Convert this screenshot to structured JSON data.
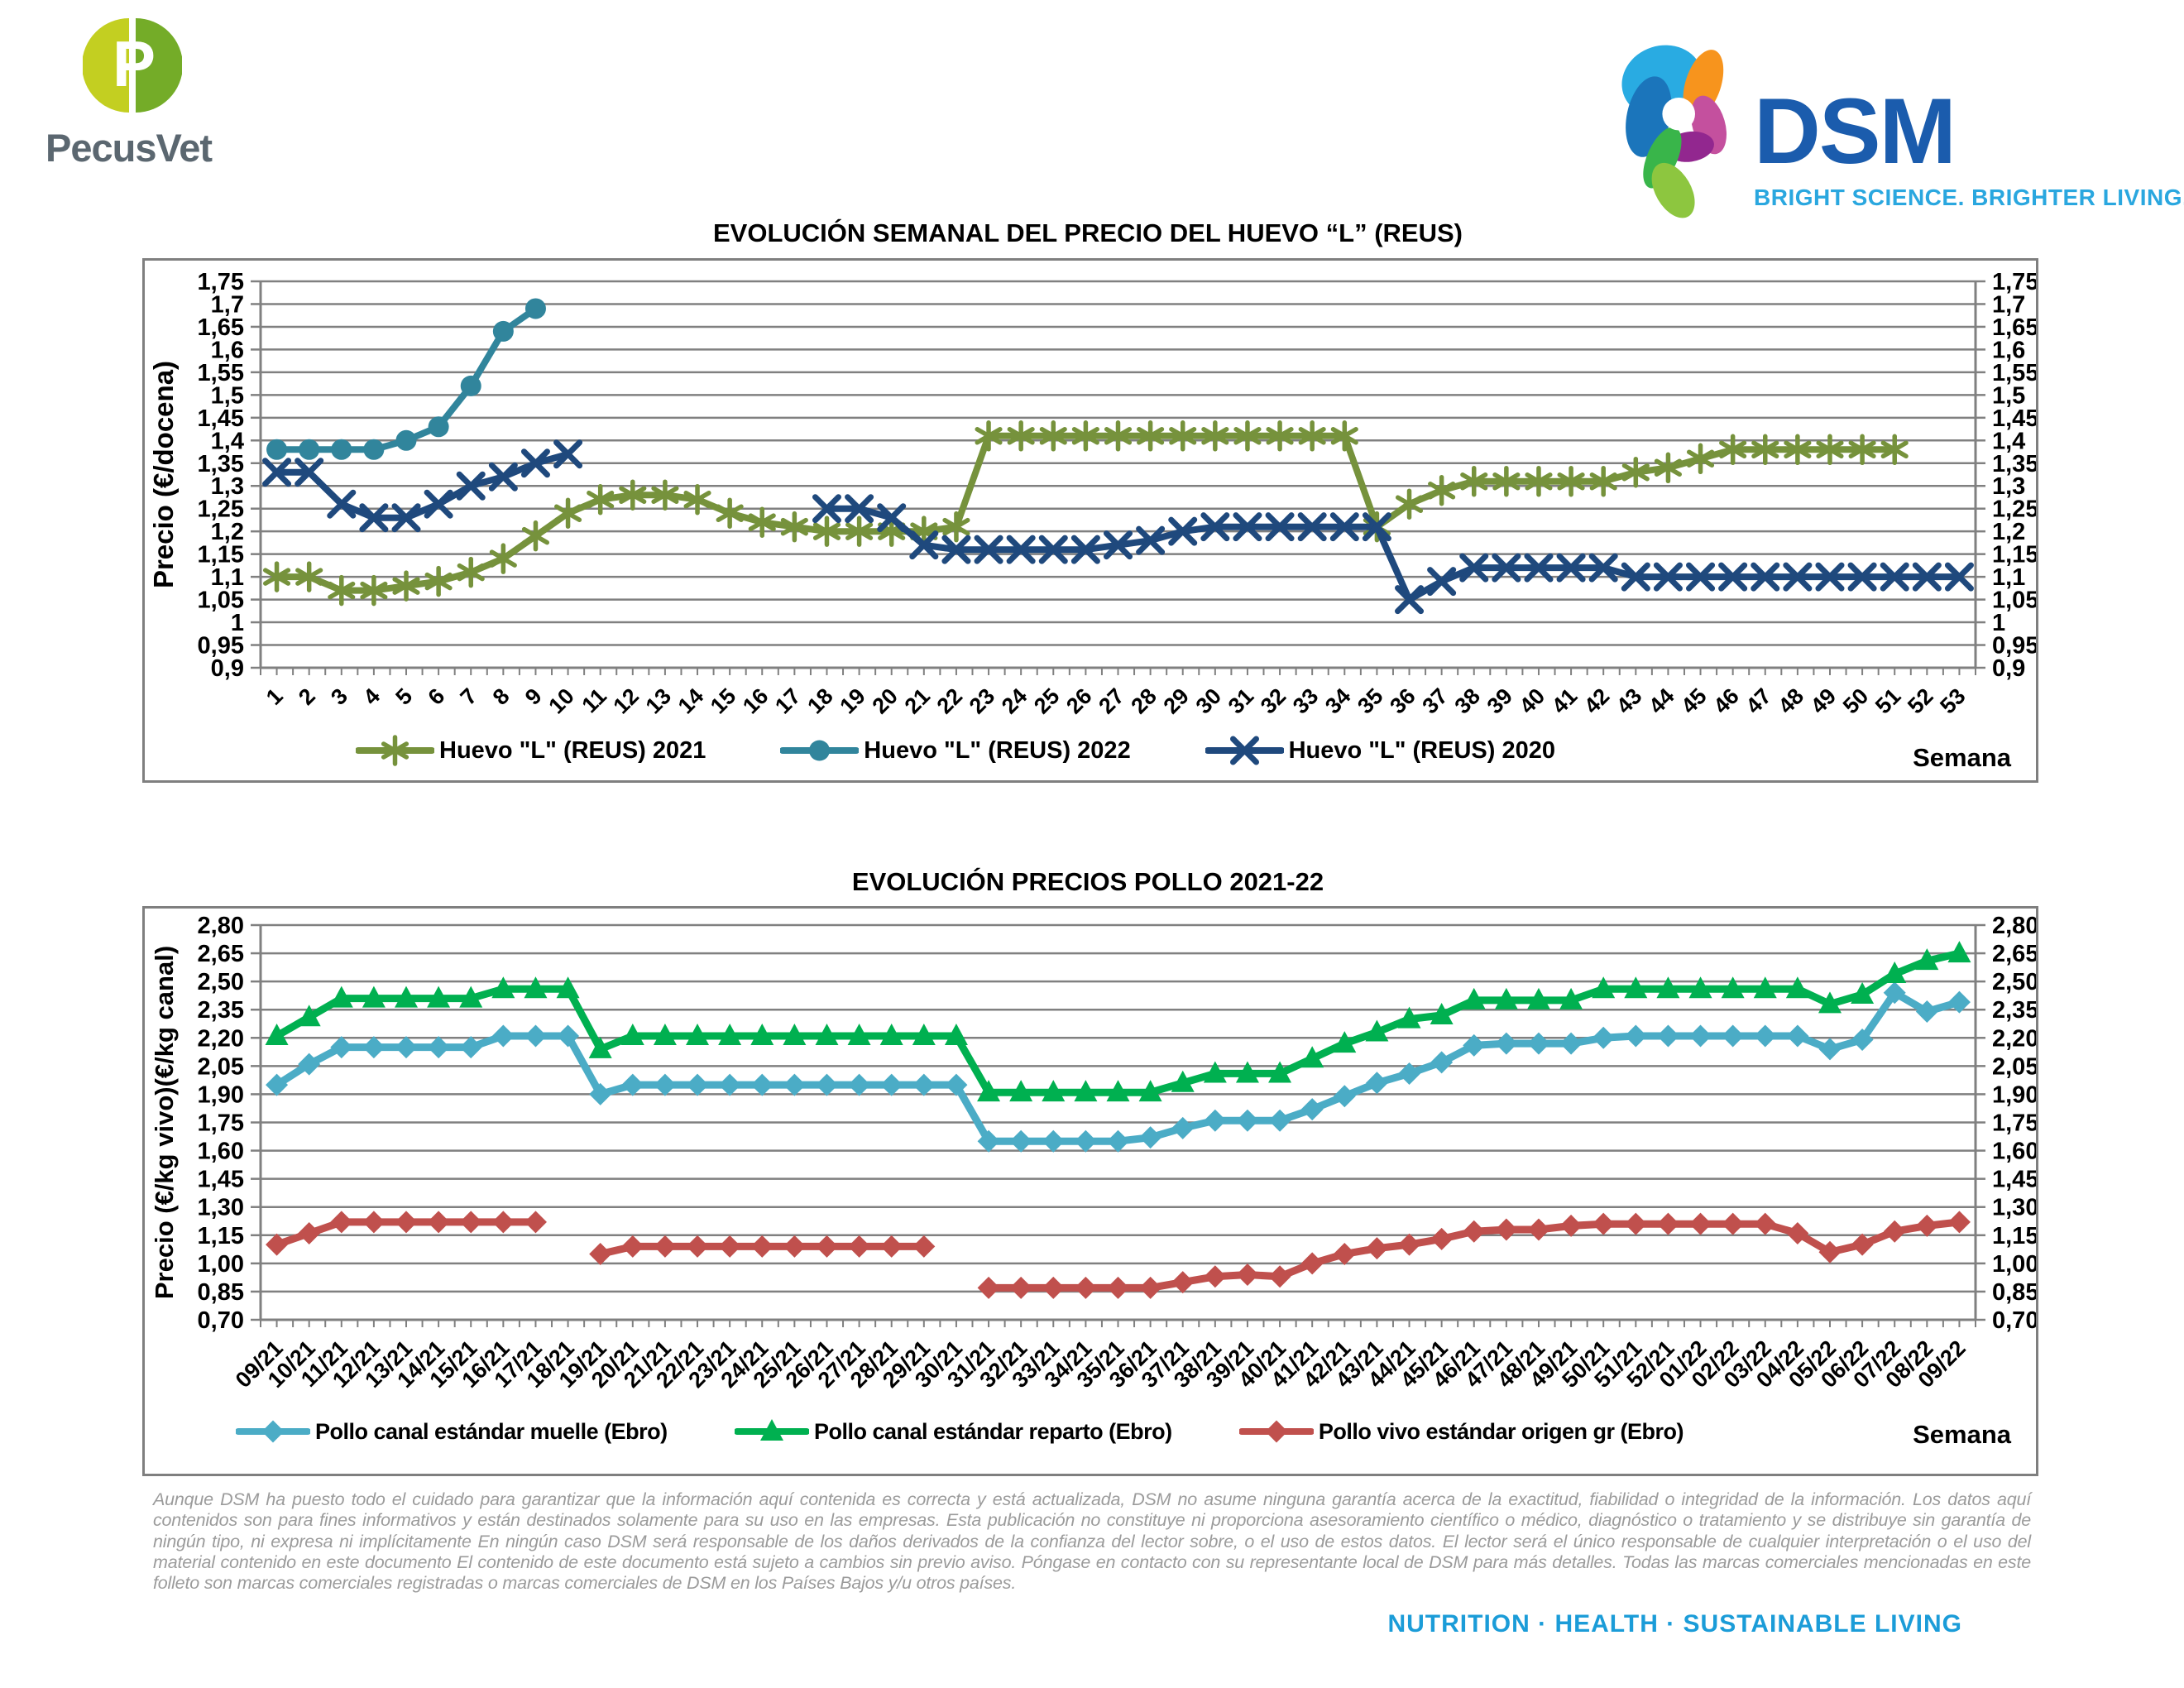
{
  "header": {
    "pecusvet": {
      "name": "PecusVet",
      "monogram": "P"
    },
    "dsm": {
      "name": "DSM",
      "tagline": "BRIGHT SCIENCE. BRIGHTER LIVING."
    }
  },
  "footer": {
    "disclaimer": "Aunque DSM ha puesto todo el cuidado para garantizar que la información aquí contenida es correcta y está actualizada, DSM no asume ninguna garantía acerca de la exactitud, fiabilidad o integridad de la información. Los datos aquí contenidos son para fines informativos y están destinados solamente para su uso en las empresas. Esta publicación no constituye ni proporciona asesoramiento científico o médico, diagnóstico o tratamiento y se distribuye sin garantía de ningún tipo, ni expresa ni implícitamente En ningún caso DSM será responsable de los daños derivados de la confianza del lector sobre, o el uso de estos datos. El lector será el único responsable de cualquier interpretación o el uso del material contenido en este documento El contenido de este documento está sujeto a cambios sin previo aviso. Póngase en contacto con su representante local de DSM para más detalles. Todas las marcas comerciales mencionadas en este folleto son marcas comerciales registradas o marcas comerciales de DSM en los Países Bajos y/u otros países.",
    "tagline": "NUTRITION  ·  HEALTH  ·  SUSTAINABLE LIVING"
  },
  "chart_data": [
    {
      "type": "line",
      "title": "EVOLUCIÓN SEMANAL DEL PRECIO DEL HUEVO “L” (REUS)",
      "xlabel": "Semana",
      "ylabel": "Precio (€/docena)",
      "ylim": [
        0.9,
        1.75
      ],
      "ytick_step": 0.05,
      "grid": true,
      "legend_position": "bottom",
      "yticks": [
        "1,75",
        "1,7",
        "1,65",
        "1,6",
        "1,55",
        "1,5",
        "1,45",
        "1,4",
        "1,35",
        "1,3",
        "1,25",
        "1,2",
        "1,15",
        "1,1",
        "1,05",
        "1",
        "0,95",
        "0,9"
      ],
      "categories": [
        "1",
        "2",
        "3",
        "4",
        "5",
        "6",
        "7",
        "8",
        "9",
        "10",
        "11",
        "12",
        "13",
        "14",
        "15",
        "16",
        "17",
        "18",
        "19",
        "20",
        "21",
        "22",
        "23",
        "24",
        "25",
        "26",
        "27",
        "28",
        "29",
        "30",
        "31",
        "32",
        "33",
        "34",
        "35",
        "36",
        "37",
        "38",
        "39",
        "40",
        "41",
        "42",
        "43",
        "44",
        "45",
        "46",
        "47",
        "48",
        "49",
        "50",
        "51",
        "52",
        "53"
      ],
      "series": [
        {
          "name": "Huevo \"L\" (REUS) 2021",
          "color": "#76923C",
          "marker": "star",
          "values": [
            1.1,
            1.1,
            1.07,
            1.07,
            1.08,
            1.09,
            1.11,
            1.14,
            1.19,
            1.24,
            1.27,
            1.28,
            1.28,
            1.27,
            1.24,
            1.22,
            1.21,
            1.2,
            1.2,
            1.2,
            1.2,
            1.21,
            1.41,
            1.41,
            1.41,
            1.41,
            1.41,
            1.41,
            1.41,
            1.41,
            1.41,
            1.41,
            1.41,
            1.41,
            1.21,
            1.26,
            1.29,
            1.31,
            1.31,
            1.31,
            1.31,
            1.31,
            1.33,
            1.34,
            1.36,
            1.38,
            1.38,
            1.38,
            1.38,
            1.38,
            1.38,
            null,
            null
          ]
        },
        {
          "name": "Huevo \"L\" (REUS) 2022",
          "color": "#31859C",
          "marker": "circle",
          "values": [
            1.38,
            1.38,
            1.38,
            1.38,
            1.4,
            1.43,
            1.52,
            1.64,
            1.69,
            null,
            null,
            null,
            null,
            null,
            null,
            null,
            null,
            null,
            null,
            null,
            null,
            null,
            null,
            null,
            null,
            null,
            null,
            null,
            null,
            null,
            null,
            null,
            null,
            null,
            null,
            null,
            null,
            null,
            null,
            null,
            null,
            null,
            null,
            null,
            null,
            null,
            null,
            null,
            null,
            null,
            null,
            null,
            null
          ]
        },
        {
          "name": "Huevo \"L\" (REUS) 2020",
          "color": "#1F497D",
          "marker": "x",
          "values": [
            1.33,
            1.33,
            1.26,
            1.23,
            1.23,
            1.26,
            1.3,
            1.32,
            1.35,
            1.37,
            null,
            null,
            null,
            null,
            null,
            null,
            null,
            1.25,
            1.25,
            1.23,
            1.17,
            1.16,
            1.16,
            1.16,
            1.16,
            1.16,
            1.17,
            1.18,
            1.2,
            1.21,
            1.21,
            1.21,
            1.21,
            1.21,
            1.21,
            1.05,
            1.09,
            1.12,
            1.12,
            1.12,
            1.12,
            1.12,
            1.1,
            1.1,
            1.1,
            1.1,
            1.1,
            1.1,
            1.1,
            1.1,
            1.1,
            1.1,
            1.1
          ]
        }
      ]
    },
    {
      "type": "line",
      "title": "EVOLUCIÓN PRECIOS POLLO 2021-22",
      "xlabel": "Semana",
      "ylabel": "Precio (€/kg vivo)(€/kg canal)",
      "ylim": [
        0.7,
        2.8
      ],
      "ytick_step": 0.15,
      "grid": true,
      "legend_position": "bottom",
      "yticks": [
        "2,80",
        "2,65",
        "2,50",
        "2,35",
        "2,20",
        "2,05",
        "1,90",
        "1,75",
        "1,60",
        "1,45",
        "1,30",
        "1,15",
        "1,00",
        "0,85",
        "0,70"
      ],
      "categories": [
        "09/21",
        "10/21",
        "11/21",
        "12/21",
        "13/21",
        "14/21",
        "15/21",
        "16/21",
        "17/21",
        "18/21",
        "19/21",
        "20/21",
        "21/21",
        "22/21",
        "23/21",
        "24/21",
        "25/21",
        "26/21",
        "27/21",
        "28/21",
        "29/21",
        "30/21",
        "31/21",
        "32/21",
        "33/21",
        "34/21",
        "35/21",
        "36/21",
        "37/21",
        "38/21",
        "39/21",
        "40/21",
        "41/21",
        "42/21",
        "43/21",
        "44/21",
        "45/21",
        "46/21",
        "47/21",
        "48/21",
        "49/21",
        "50/21",
        "51/21",
        "52/21",
        "01/22",
        "02/22",
        "03/22",
        "04/22",
        "05/22",
        "06/22",
        "07/22",
        "08/22",
        "09/22"
      ],
      "series": [
        {
          "name": "Pollo canal estándar muelle (Ebro)",
          "color": "#4BACC6",
          "marker": "diamond",
          "values": [
            1.95,
            2.06,
            2.15,
            2.15,
            2.15,
            2.15,
            2.15,
            2.21,
            2.21,
            2.21,
            1.9,
            1.95,
            1.95,
            1.95,
            1.95,
            1.95,
            1.95,
            1.95,
            1.95,
            1.95,
            1.95,
            1.95,
            1.65,
            1.65,
            1.65,
            1.65,
            1.65,
            1.67,
            1.72,
            1.76,
            1.76,
            1.76,
            1.82,
            1.89,
            1.96,
            2.01,
            2.07,
            2.16,
            2.17,
            2.17,
            2.17,
            2.2,
            2.21,
            2.21,
            2.21,
            2.21,
            2.21,
            2.21,
            2.14,
            2.19,
            2.44,
            2.34,
            2.39
          ]
        },
        {
          "name": "Pollo canal estándar reparto (Ebro)",
          "color": "#00B050",
          "marker": "triangle",
          "values": [
            2.21,
            2.31,
            2.41,
            2.41,
            2.41,
            2.41,
            2.41,
            2.46,
            2.46,
            2.46,
            2.14,
            2.21,
            2.21,
            2.21,
            2.21,
            2.21,
            2.21,
            2.21,
            2.21,
            2.21,
            2.21,
            2.21,
            1.91,
            1.91,
            1.91,
            1.91,
            1.91,
            1.91,
            1.96,
            2.01,
            2.01,
            2.01,
            2.09,
            2.17,
            2.23,
            2.3,
            2.32,
            2.4,
            2.4,
            2.4,
            2.4,
            2.46,
            2.46,
            2.46,
            2.46,
            2.46,
            2.46,
            2.46,
            2.38,
            2.43,
            2.54,
            2.61,
            2.65
          ]
        },
        {
          "name": "Pollo vivo estándar origen gr (Ebro)",
          "color": "#C0504D",
          "marker": "diamond",
          "values": [
            1.1,
            1.16,
            1.22,
            1.22,
            1.22,
            1.22,
            1.22,
            1.22,
            1.22,
            null,
            1.05,
            1.09,
            1.09,
            1.09,
            1.09,
            1.09,
            1.09,
            1.09,
            1.09,
            1.09,
            1.09,
            null,
            0.87,
            0.87,
            0.87,
            0.87,
            0.87,
            0.87,
            0.9,
            0.93,
            0.94,
            0.93,
            1.0,
            1.05,
            1.08,
            1.1,
            1.13,
            1.17,
            1.18,
            1.18,
            1.2,
            1.21,
            1.21,
            1.21,
            1.21,
            1.21,
            1.21,
            1.16,
            1.06,
            1.1,
            1.17,
            1.2,
            1.22
          ]
        }
      ]
    }
  ]
}
